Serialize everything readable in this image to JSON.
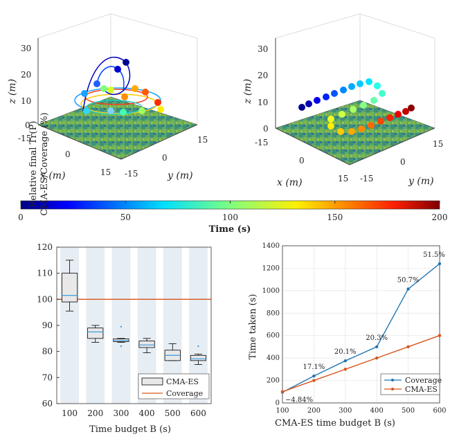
{
  "colorbar": {
    "label": "Time (s)",
    "ticks": [
      0,
      50,
      100,
      150,
      200
    ],
    "range": [
      0,
      200
    ]
  },
  "plot3d_left": {
    "x_label": "x (m)",
    "y_label": "y (m)",
    "z_label": "z (m)",
    "x_ticks": [
      "-15",
      "0",
      "15"
    ],
    "y_ticks": [
      "-15",
      "0",
      "15"
    ],
    "z_ticks": [
      "0",
      "10",
      "20",
      "30"
    ]
  },
  "plot3d_right": {
    "x_label": "x (m)",
    "y_label": "y (m)",
    "z_label": "z (m)",
    "x_ticks": [
      "-15",
      "0",
      "15"
    ],
    "y_ticks": [
      "-15",
      "0",
      "15"
    ],
    "z_ticks": [
      "0",
      "10",
      "20",
      "30"
    ]
  },
  "chart_data": [
    {
      "type": "box",
      "title": "",
      "xlabel": "Time budget B (s)",
      "ylabel_line1": "Relative final Tr(P)",
      "ylabel_line2": "CMA-ES/Coverage (%)",
      "categories": [
        100,
        200,
        300,
        400,
        500,
        600
      ],
      "ylim": [
        60,
        120
      ],
      "yticks": [
        60,
        70,
        80,
        90,
        100,
        110,
        120
      ],
      "coverage_reference": 100,
      "boxes": [
        {
          "whisker_low": 95.5,
          "q1": 99,
          "median": 101.5,
          "q3": 110,
          "whisker_high": 115,
          "outliers": []
        },
        {
          "whisker_low": 83.5,
          "q1": 85,
          "median": 87.5,
          "q3": 89,
          "whisker_high": 90,
          "outliers": []
        },
        {
          "whisker_low": 83.5,
          "q1": 83.8,
          "median": 84.2,
          "q3": 84.8,
          "whisker_high": 85,
          "outliers": [
            82,
            89.5
          ]
        },
        {
          "whisker_low": 79.5,
          "q1": 81.5,
          "median": 82.5,
          "q3": 84,
          "whisker_high": 85,
          "outliers": []
        },
        {
          "whisker_low": 76.5,
          "q1": 76.5,
          "median": 78.5,
          "q3": 80.5,
          "whisker_high": 83,
          "outliers": []
        },
        {
          "whisker_low": 75,
          "q1": 76.5,
          "median": 77.2,
          "q3": 78.5,
          "whisker_high": 79,
          "outliers": [
            82
          ]
        }
      ],
      "legend": [
        "CMA-ES",
        "Coverage"
      ],
      "legend_position": "bottom-right"
    },
    {
      "type": "line",
      "title": "",
      "xlabel": "CMA-ES time budget B (s)",
      "ylabel": "Time taken (s)",
      "x": [
        100,
        200,
        300,
        400,
        500,
        600
      ],
      "xlim": [
        100,
        600
      ],
      "ylim": [
        0,
        1400
      ],
      "yticks": [
        0,
        200,
        400,
        600,
        800,
        1000,
        1200,
        1400
      ],
      "series": [
        {
          "name": "Coverage",
          "values": [
            95,
            240,
            375,
            500,
            1015,
            1240
          ],
          "color": "#1f77b4"
        },
        {
          "name": "CMA-ES",
          "values": [
            100,
            200,
            300,
            400,
            500,
            600
          ],
          "color": "#d95319"
        }
      ],
      "annotations": [
        "−4.84%",
        "17.1%",
        "20.1%",
        "20.3%",
        "50.7%",
        "51.5%"
      ],
      "legend_position": "bottom-right"
    }
  ]
}
